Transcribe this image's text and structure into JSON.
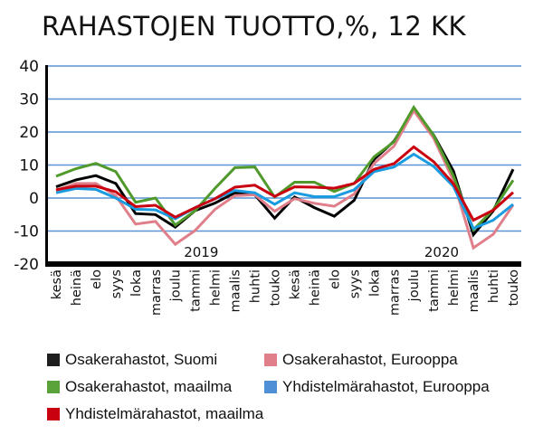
{
  "title": "RAHASTOJEN TUOTTO,%, 12 KK",
  "chart_data": {
    "type": "line",
    "title": "RAHASTOJEN TUOTTO,%, 12 KK",
    "xlabel": "",
    "ylabel": "",
    "ylim": [
      -20,
      40
    ],
    "yticks": [
      40,
      30,
      20,
      10,
      0,
      -10,
      -20
    ],
    "grid": true,
    "legend_position": "bottom",
    "year_labels": [
      {
        "label": "2019",
        "index": 7.3
      },
      {
        "label": "2020",
        "index": 19.4
      }
    ],
    "categories": [
      "kesä",
      "heinä",
      "elo",
      "syys",
      "loka",
      "marras",
      "joulu",
      "tammi",
      "helmi",
      "maalis",
      "huhti",
      "touko",
      "kesä",
      "heinä",
      "elo",
      "syys",
      "loka",
      "marras",
      "joulu",
      "tammi",
      "helmi",
      "maalis",
      "huhti",
      "touko"
    ],
    "series": [
      {
        "name": "Osakerahastot, Suomi",
        "color": "#000000",
        "values": [
          3.4,
          5.5,
          6.8,
          4.4,
          -4.7,
          -5.0,
          -8.8,
          -3.8,
          -1.5,
          1.6,
          1.0,
          -6.1,
          0.3,
          -2.9,
          -5.5,
          -0.7,
          11.7,
          17.2,
          26.7,
          19.1,
          8.1,
          -11.1,
          -3.9,
          8.7
        ]
      },
      {
        "name": "Osakerahastot, Eurooppa",
        "color": "#e07f89",
        "values": [
          2.3,
          4.4,
          4.4,
          0.7,
          -7.9,
          -7.1,
          -14.0,
          -9.8,
          -3.4,
          0.7,
          1.0,
          -4.0,
          -0.2,
          -1.6,
          -2.5,
          1.2,
          10.5,
          15.7,
          26.5,
          18.1,
          5.2,
          -15.1,
          -11.0,
          -2.1
        ]
      },
      {
        "name": "Osakerahastot, maailma",
        "color": "#4f9a2a",
        "values": [
          6.6,
          8.9,
          10.5,
          8.0,
          -1.3,
          0.0,
          -8.2,
          -3.8,
          3.0,
          9.2,
          9.4,
          0.3,
          4.8,
          4.8,
          2.0,
          4.4,
          12.5,
          17.0,
          27.5,
          19.0,
          6.6,
          -9.6,
          -3.5,
          5.4
        ]
      },
      {
        "name": "Yhdistelmärahastot, Eurooppa",
        "color": "#1a9be0",
        "values": [
          1.6,
          2.9,
          2.6,
          0.0,
          -3.4,
          -3.6,
          -6.3,
          -2.9,
          -0.2,
          2.3,
          1.6,
          -1.9,
          1.6,
          0.4,
          0.4,
          2.5,
          8.0,
          9.4,
          13.3,
          9.6,
          3.5,
          -9.2,
          -6.7,
          -1.9
        ]
      },
      {
        "name": "Yhdistelmärahastot, maailma",
        "color": "#c8000f",
        "values": [
          2.5,
          3.6,
          3.6,
          1.9,
          -2.6,
          -2.2,
          -5.8,
          -2.9,
          -0.2,
          3.3,
          3.9,
          0.5,
          3.4,
          3.3,
          3.0,
          4.4,
          8.7,
          10.4,
          15.5,
          11.0,
          4.3,
          -6.7,
          -3.7,
          1.7
        ]
      }
    ]
  },
  "legend": {
    "items": [
      {
        "label": "Osakerahastot, Suomi",
        "color": "#1e1e1e"
      },
      {
        "label": "Osakerahastot, Eurooppa",
        "color": "#e07f89"
      },
      {
        "label": "Osakerahastot, maailma",
        "color": "#5aa33a"
      },
      {
        "label": "Yhdistelmärahastot, Eurooppa",
        "color": "#4f8fd6"
      },
      {
        "label": "Yhdistelmärahastot, maailma",
        "color": "#c8000f"
      }
    ]
  },
  "colors": {
    "gridline": "#5b93d6",
    "axis": "#000000"
  }
}
